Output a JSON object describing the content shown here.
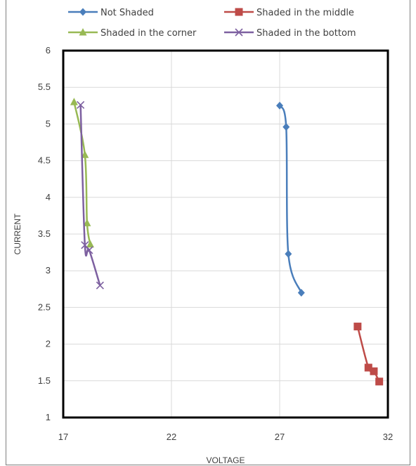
{
  "chart_data": {
    "type": "line",
    "title": "",
    "xlabel": "VOLTAGE",
    "ylabel": "CURRENT",
    "xlim": [
      17,
      32
    ],
    "ylim": [
      1,
      6
    ],
    "xticks": [
      17,
      22,
      27,
      32
    ],
    "yticks": [
      1,
      1.5,
      2,
      2.5,
      3,
      3.5,
      4,
      4.5,
      5,
      5.5,
      6
    ],
    "grid": true,
    "legend_position": "top",
    "series": [
      {
        "name": "Not Shaded",
        "color": "#4a7ebb",
        "marker": "diamond",
        "x": [
          27.0,
          27.3,
          27.4,
          28.0
        ],
        "y": [
          5.25,
          4.96,
          3.23,
          2.7
        ]
      },
      {
        "name": "Shaded in the middle",
        "color": "#be4b48",
        "marker": "square",
        "x": [
          30.6,
          31.1,
          31.35,
          31.6
        ],
        "y": [
          2.24,
          1.68,
          1.63,
          1.49
        ]
      },
      {
        "name": "Shaded in the corner",
        "color": "#98b954",
        "marker": "triangle",
        "x": [
          17.5,
          18.0,
          18.1,
          18.25
        ],
        "y": [
          5.3,
          4.58,
          3.65,
          3.36
        ]
      },
      {
        "name": "Shaded in the bottom",
        "color": "#7d60a0",
        "marker": "x",
        "x": [
          17.8,
          18.0,
          18.2,
          18.7
        ],
        "y": [
          5.26,
          3.35,
          3.28,
          2.8
        ]
      }
    ]
  }
}
